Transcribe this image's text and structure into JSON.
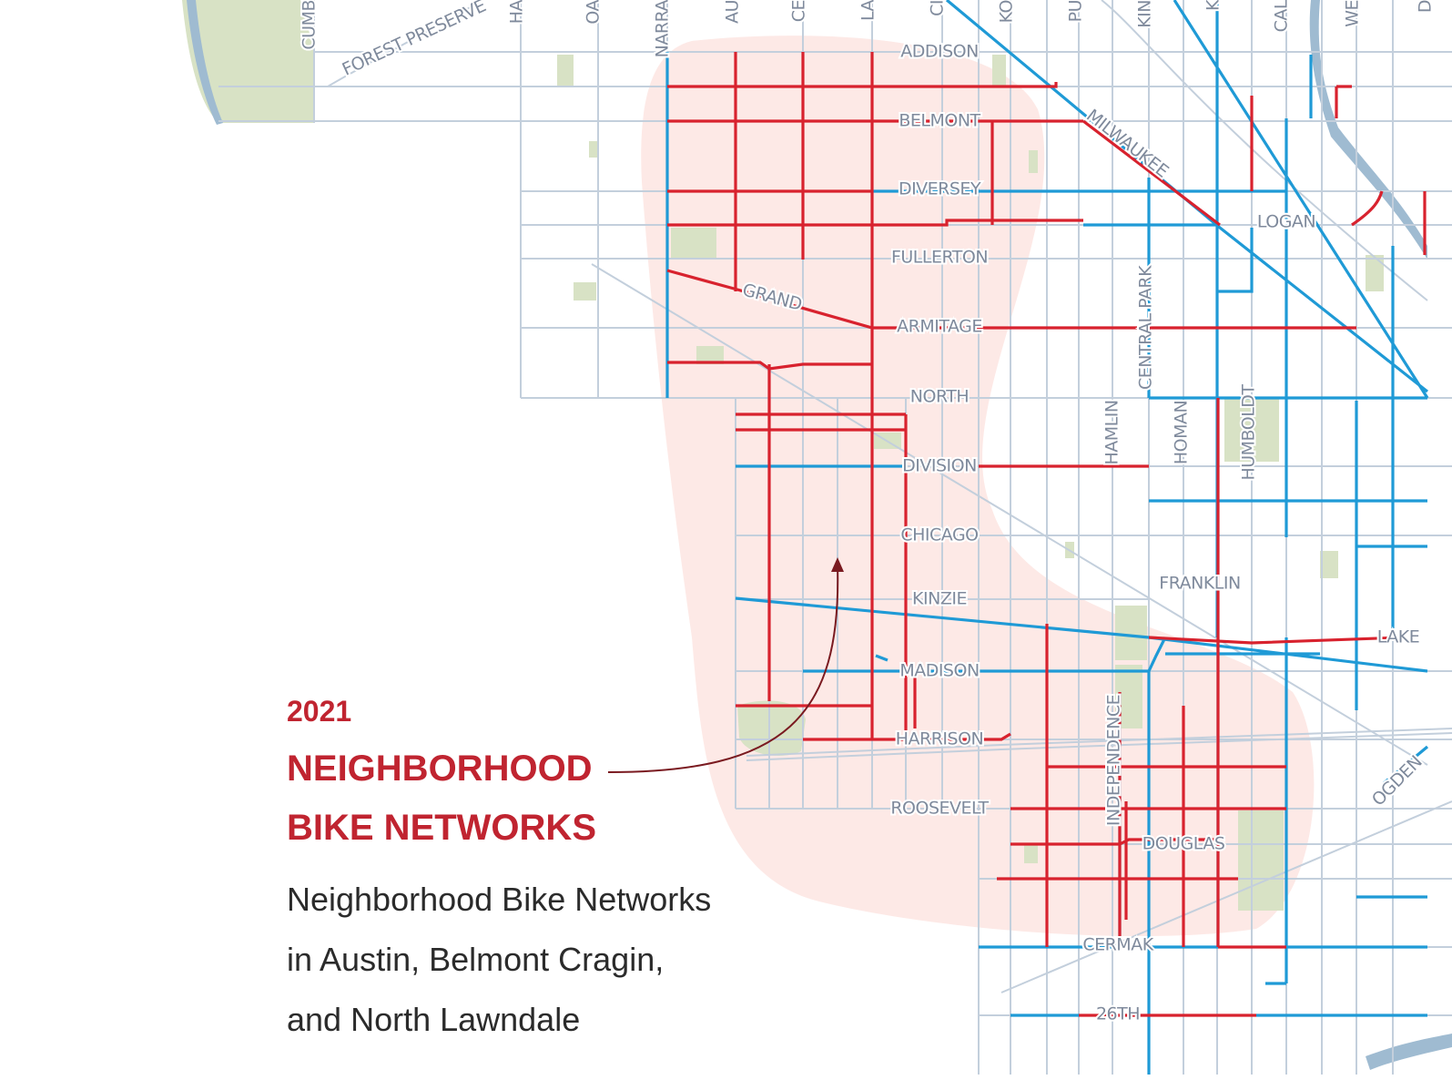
{
  "annotation": {
    "year": "2021",
    "title_lines": [
      "NEIGHBORHOOD",
      "BIKE NETWORKS"
    ],
    "description_lines": [
      "Neighborhood Bike Networks",
      "in Austin, Belmont Cragin,",
      "and North Lawndale"
    ]
  },
  "street_labels": {
    "horizontal": [
      "ADDISON",
      "BELMONT",
      "DIVERSEY",
      "LOGAN",
      "FULLERTON",
      "ARMITAGE",
      "NORTH",
      "DIVISION",
      "CHICAGO",
      "KINZIE",
      "FRANKLIN",
      "LAKE",
      "MADISON",
      "HARRISON",
      "ROOSEVELT",
      "DOUGLAS",
      "CERMAK",
      "26TH"
    ],
    "vertical": [
      "CENTRAL PARK",
      "HAMLIN",
      "HOMAN",
      "HUMBOLDT",
      "INDEPENDENCE"
    ],
    "diagonal": [
      "FOREST PRESERVE",
      "MILWAUKEE",
      "GRAND",
      "OGDEN"
    ],
    "top_edge": [
      "CUMB",
      "HA",
      "OA",
      "NARRA",
      "AU",
      "CE",
      "LA",
      "CI",
      "KO",
      "PU",
      "KIN",
      "K",
      "CAL",
      "WE",
      "D"
    ]
  }
}
